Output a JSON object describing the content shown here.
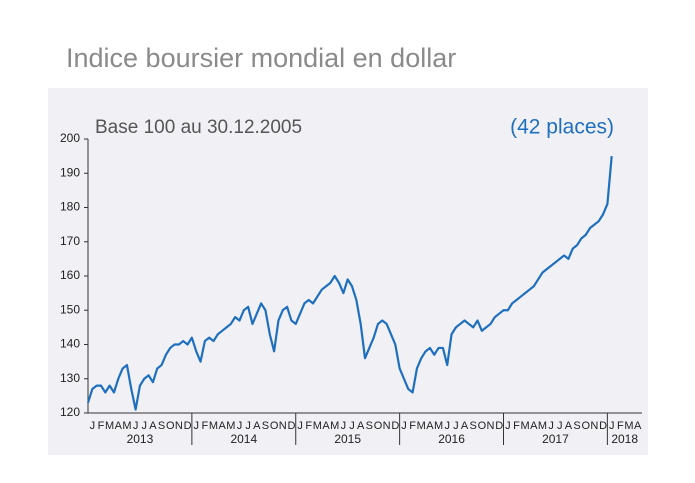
{
  "chart_data": {
    "type": "line",
    "title": "Indice boursier mondial en dollar",
    "subtitle": "Base 100 au 30.12.2005",
    "annotation": "(42 places)",
    "color": "#1f6fbf",
    "ylim": [
      120,
      200
    ],
    "yticks": [
      120,
      130,
      140,
      150,
      160,
      170,
      180,
      190,
      200
    ],
    "month_labels": [
      "J",
      "F",
      "M",
      "A",
      "M",
      "J",
      "J",
      "A",
      "S",
      "O",
      "N",
      "D",
      "J",
      "F",
      "M",
      "A",
      "M",
      "J",
      "J",
      "A",
      "S",
      "O",
      "N",
      "D",
      "J",
      "F",
      "M",
      "A",
      "M",
      "J",
      "J",
      "A",
      "S",
      "O",
      "N",
      "D",
      "J",
      "F",
      "M",
      "A",
      "M",
      "J",
      "J",
      "A",
      "S",
      "O",
      "N",
      "D",
      "J",
      "F",
      "M",
      "A",
      "M",
      "J",
      "J",
      "A",
      "S",
      "O",
      "N",
      "D",
      "J",
      "F",
      "M",
      "A"
    ],
    "year_labels": [
      "2013",
      "2014",
      "2015",
      "2016",
      "2017",
      "2018"
    ],
    "values": [
      123,
      127,
      128,
      128,
      126,
      128,
      126,
      130,
      133,
      134,
      127,
      121,
      128,
      130,
      131,
      129,
      133,
      134,
      137,
      139,
      140,
      140,
      141,
      140,
      142,
      138,
      135,
      141,
      142,
      141,
      143,
      144,
      145,
      146,
      148,
      147,
      150,
      151,
      146,
      149,
      152,
      150,
      143,
      138,
      147,
      150,
      151,
      147,
      146,
      149,
      152,
      153,
      152,
      154,
      156,
      157,
      158,
      160,
      158,
      155,
      159,
      157,
      153,
      146,
      136,
      139,
      142,
      146,
      147,
      146,
      143,
      140,
      133,
      130,
      127,
      126,
      133,
      136,
      138,
      139,
      137,
      139,
      139,
      134,
      143,
      145,
      146,
      147,
      146,
      145,
      147,
      144,
      145,
      146,
      148,
      149,
      150,
      150,
      152,
      153,
      154,
      155,
      156,
      157,
      159,
      161,
      162,
      163,
      164,
      165,
      166,
      165,
      168,
      169,
      171,
      172,
      174,
      175,
      176,
      178,
      181,
      195
    ]
  }
}
